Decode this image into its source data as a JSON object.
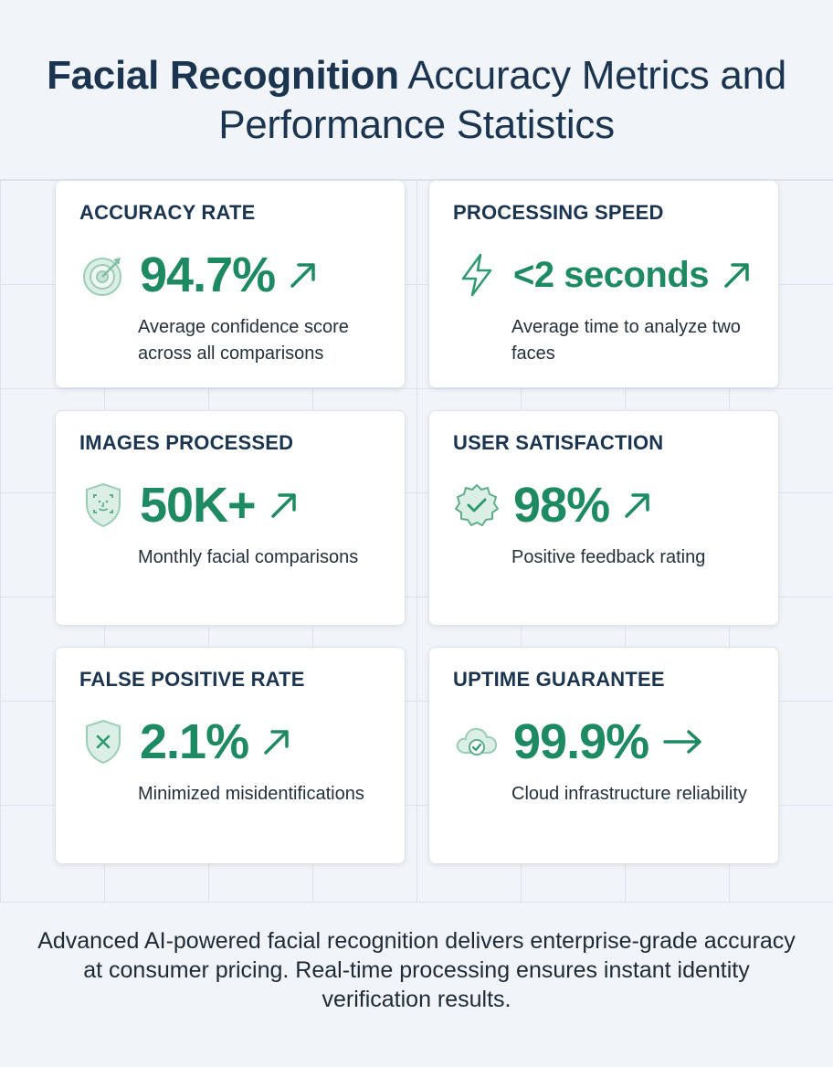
{
  "header": {
    "title_bold": "Facial Recognition",
    "title_rest": "Accuracy Metrics and Performance Statistics"
  },
  "colors": {
    "accent": "#1e8a62",
    "heading": "#1b3450",
    "icon_fill": "#dcefe6"
  },
  "cards": [
    {
      "label": "ACCURACY RATE",
      "value": "94.7%",
      "trend": "up",
      "icon": "target-icon",
      "description": "Average confidence score across all comparisons"
    },
    {
      "label": "PROCESSING SPEED",
      "value": "<2 seconds",
      "trend": "up",
      "icon": "lightning-icon",
      "description": "Average time to analyze two faces"
    },
    {
      "label": "IMAGES PROCESSED",
      "value": "50K+",
      "trend": "up",
      "icon": "face-scan-shield-icon",
      "description": "Monthly facial comparisons"
    },
    {
      "label": "USER SATISFACTION",
      "value": "98%",
      "trend": "up",
      "icon": "verified-badge-icon",
      "description": "Positive feedback rating"
    },
    {
      "label": "FALSE POSITIVE RATE",
      "value": "2.1%",
      "trend": "up",
      "icon": "shield-x-icon",
      "description": "Minimized misidentifications"
    },
    {
      "label": "UPTIME GUARANTEE",
      "value": "99.9%",
      "trend": "right",
      "icon": "cloud-check-icon",
      "description": "Cloud infrastructure reliability"
    }
  ],
  "footer": {
    "text": "Advanced AI-powered facial recognition delivers enterprise-grade accuracy at consumer pricing. Real-time processing ensures instant identity verification results."
  }
}
